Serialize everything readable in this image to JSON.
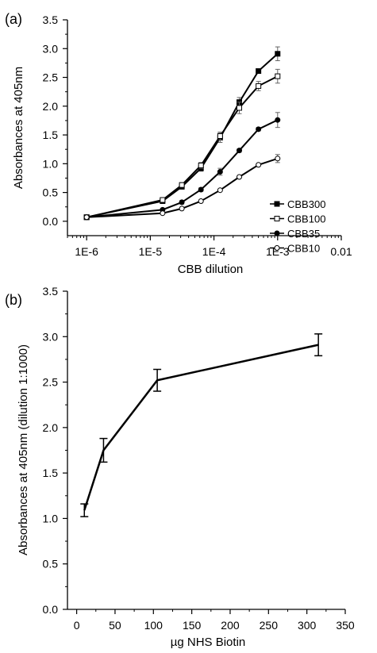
{
  "chart_data": [
    {
      "panel_label": "(a)",
      "type": "line",
      "xscale": "log",
      "xlim": [
        5e-07,
        0.01
      ],
      "ylim": [
        -0.25,
        3.5
      ],
      "xlabel": "CBB dilution",
      "ylabel": "Absorbances at 405nm",
      "xtick_values": [
        1e-06,
        1e-05,
        0.0001,
        0.001,
        0.01
      ],
      "xtick_labels": [
        "1E-6",
        "1E-5",
        "1E-4",
        "1E-3",
        "0.01"
      ],
      "ytick_values": [
        0.0,
        0.5,
        1.0,
        1.5,
        2.0,
        2.5,
        3.0,
        3.5
      ],
      "ytick_labels": [
        "0.0",
        "0.5",
        "1.0",
        "1.5",
        "2.0",
        "2.5",
        "3.0",
        "3.5"
      ],
      "legend_position": "lower-right",
      "x": [
        1e-06,
        1.56e-05,
        3.13e-05,
        6.25e-05,
        0.000125,
        0.00025,
        0.0005,
        0.001
      ],
      "series": [
        {
          "name": "CBB300",
          "marker": "filled-square",
          "values": [
            0.07,
            0.35,
            0.6,
            0.92,
            1.45,
            2.07,
            2.61,
            2.91
          ],
          "errors": [
            0.02,
            0.03,
            0.04,
            0.05,
            0.08,
            0.08,
            0.03,
            0.12
          ]
        },
        {
          "name": "CBB100",
          "marker": "open-square",
          "values": [
            0.07,
            0.37,
            0.63,
            0.97,
            1.48,
            1.97,
            2.35,
            2.52
          ],
          "errors": [
            0.02,
            0.03,
            0.04,
            0.05,
            0.07,
            0.1,
            0.08,
            0.12
          ]
        },
        {
          "name": "CBB35",
          "marker": "filled-circle",
          "values": [
            0.07,
            0.2,
            0.33,
            0.55,
            0.86,
            1.23,
            1.6,
            1.76
          ],
          "errors": [
            0.02,
            0.02,
            0.03,
            0.03,
            0.06,
            0.03,
            0.03,
            0.13
          ]
        },
        {
          "name": "CBB10",
          "marker": "open-circle",
          "values": [
            0.07,
            0.14,
            0.22,
            0.35,
            0.54,
            0.77,
            0.98,
            1.09
          ],
          "errors": [
            0.02,
            0.02,
            0.02,
            0.02,
            0.02,
            0.02,
            0.02,
            0.07
          ]
        }
      ]
    },
    {
      "panel_label": "(b)",
      "type": "line",
      "xlim": [
        -12,
        350
      ],
      "ylim": [
        0.0,
        3.5
      ],
      "xlabel": "µg NHS Biotin",
      "ylabel": "Absorbances at 405nm (dilution 1:1000)",
      "xtick_values": [
        0,
        50,
        100,
        150,
        200,
        250,
        300,
        350
      ],
      "xtick_labels": [
        "0",
        "50",
        "100",
        "150",
        "200",
        "250",
        "300",
        "350"
      ],
      "ytick_values": [
        0.0,
        0.5,
        1.0,
        1.5,
        2.0,
        2.5,
        3.0,
        3.5
      ],
      "ytick_labels": [
        "0.0",
        "0.5",
        "1.0",
        "1.5",
        "2.0",
        "2.5",
        "3.0",
        "3.5"
      ],
      "x": [
        10,
        35,
        105,
        315
      ],
      "series": [
        {
          "values": [
            1.09,
            1.75,
            2.52,
            2.91
          ],
          "errors": [
            0.07,
            0.13,
            0.12,
            0.12
          ]
        }
      ]
    }
  ]
}
